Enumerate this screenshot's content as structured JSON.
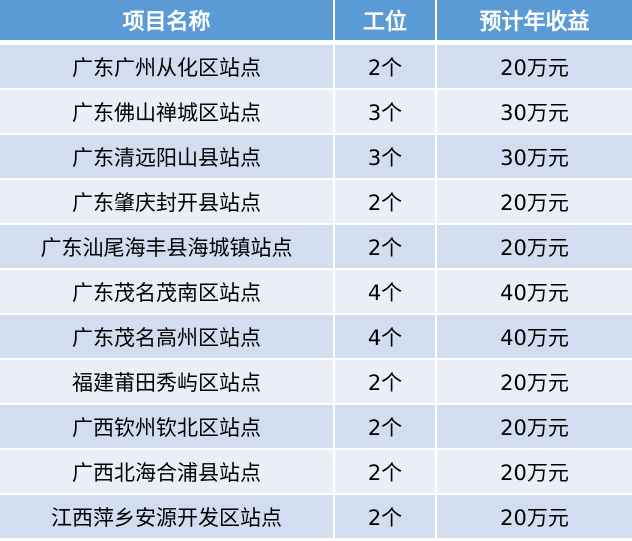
{
  "colors": {
    "header": "#5b9bd5",
    "row_odd": "#d2deef",
    "row_even": "#eaeff7"
  },
  "table": {
    "headers": [
      "项目名称",
      "工位",
      "预计年收益"
    ],
    "rows": [
      [
        "广东广州从化区站点",
        "2个",
        "20万元"
      ],
      [
        "广东佛山禅城区站点",
        "3个",
        "30万元"
      ],
      [
        "广东清远阳山县站点",
        "3个",
        "30万元"
      ],
      [
        "广东肇庆封开县站点",
        "2个",
        "20万元"
      ],
      [
        "广东汕尾海丰县海城镇站点",
        "2个",
        "20万元"
      ],
      [
        "广东茂名茂南区站点",
        "4个",
        "40万元"
      ],
      [
        "广东茂名高州区站点",
        "4个",
        "40万元"
      ],
      [
        "福建莆田秀屿区站点",
        "2个",
        "20万元"
      ],
      [
        "广西钦州钦北区站点",
        "2个",
        "20万元"
      ],
      [
        "广西北海合浦县站点",
        "2个",
        "20万元"
      ],
      [
        "江西萍乡安源开发区站点",
        "2个",
        "20万元"
      ]
    ]
  }
}
